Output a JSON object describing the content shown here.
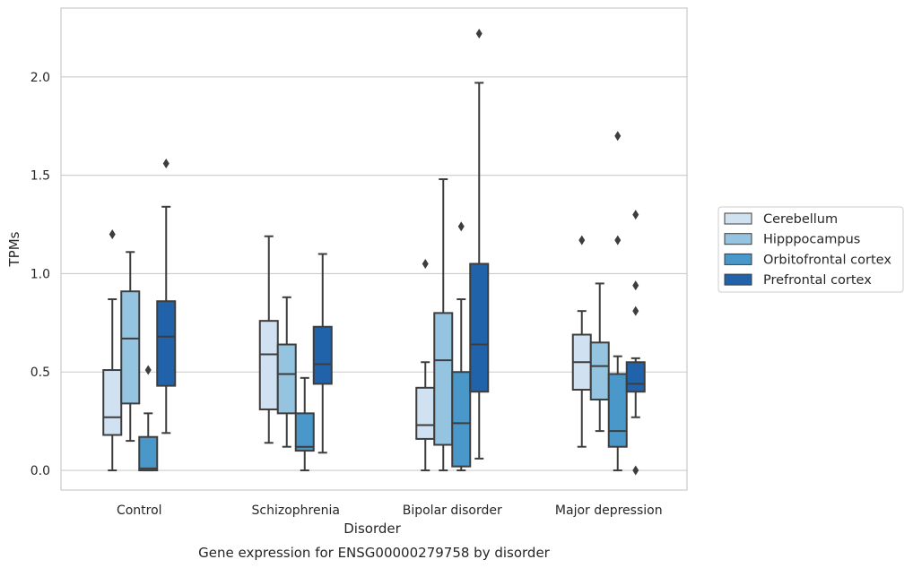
{
  "chart_data": {
    "type": "box",
    "title": "Gene expression for ENSG00000279758 by disorder",
    "xlabel": "Disorder",
    "ylabel": "TPMs",
    "ylim": [
      -0.1,
      2.35
    ],
    "yticks": [
      0.0,
      0.5,
      1.0,
      1.5,
      2.0
    ],
    "ytick_labels": [
      "0.0",
      "0.5",
      "1.0",
      "1.5",
      "2.0"
    ],
    "grid": "horizontal",
    "legend_position": "right",
    "categories": [
      "Control",
      "Schizophrenia",
      "Bipolar disorder",
      "Major depression"
    ],
    "series": [
      {
        "name": "Cerebellum",
        "color": "#d0e1f2",
        "boxes": [
          {
            "whisker_low": 0.0,
            "q1": 0.18,
            "median": 0.27,
            "q3": 0.51,
            "whisker_high": 0.87,
            "outliers": [
              1.2
            ]
          },
          {
            "whisker_low": 0.14,
            "q1": 0.31,
            "median": 0.59,
            "q3": 0.76,
            "whisker_high": 1.19,
            "outliers": []
          },
          {
            "whisker_low": 0.0,
            "q1": 0.16,
            "median": 0.23,
            "q3": 0.42,
            "whisker_high": 0.55,
            "outliers": [
              1.05
            ]
          },
          {
            "whisker_low": 0.12,
            "q1": 0.41,
            "median": 0.55,
            "q3": 0.69,
            "whisker_high": 0.81,
            "outliers": [
              1.17
            ]
          }
        ]
      },
      {
        "name": "Hipppocampus",
        "color": "#94c4df",
        "boxes": [
          {
            "whisker_low": 0.15,
            "q1": 0.34,
            "median": 0.67,
            "q3": 0.91,
            "whisker_high": 1.11,
            "outliers": []
          },
          {
            "whisker_low": 0.12,
            "q1": 0.29,
            "median": 0.49,
            "q3": 0.64,
            "whisker_high": 0.88,
            "outliers": []
          },
          {
            "whisker_low": 0.0,
            "q1": 0.13,
            "median": 0.56,
            "q3": 0.8,
            "whisker_high": 1.48,
            "outliers": []
          },
          {
            "whisker_low": 0.2,
            "q1": 0.36,
            "median": 0.53,
            "q3": 0.65,
            "whisker_high": 0.95,
            "outliers": []
          }
        ]
      },
      {
        "name": "Orbitofrontal cortex",
        "color": "#4a98c9",
        "boxes": [
          {
            "whisker_low": 0.0,
            "q1": 0.0,
            "median": 0.01,
            "q3": 0.17,
            "whisker_high": 0.29,
            "outliers": [
              0.51
            ]
          },
          {
            "whisker_low": 0.0,
            "q1": 0.1,
            "median": 0.12,
            "q3": 0.29,
            "whisker_high": 0.47,
            "outliers": []
          },
          {
            "whisker_low": 0.0,
            "q1": 0.02,
            "median": 0.24,
            "q3": 0.5,
            "whisker_high": 0.87,
            "outliers": [
              1.24
            ]
          },
          {
            "whisker_low": 0.0,
            "q1": 0.12,
            "median": 0.2,
            "q3": 0.49,
            "whisker_high": 0.58,
            "outliers": [
              1.17,
              1.7
            ]
          }
        ]
      },
      {
        "name": "Prefrontal cortex",
        "color": "#2163aa",
        "boxes": [
          {
            "whisker_low": 0.19,
            "q1": 0.43,
            "median": 0.68,
            "q3": 0.86,
            "whisker_high": 1.34,
            "outliers": [
              1.56
            ]
          },
          {
            "whisker_low": 0.09,
            "q1": 0.44,
            "median": 0.54,
            "q3": 0.73,
            "whisker_high": 1.1,
            "outliers": []
          },
          {
            "whisker_low": 0.06,
            "q1": 0.4,
            "median": 0.64,
            "q3": 1.05,
            "whisker_high": 1.97,
            "outliers": [
              2.22
            ]
          },
          {
            "whisker_low": 0.27,
            "q1": 0.4,
            "median": 0.44,
            "q3": 0.55,
            "whisker_high": 0.57,
            "outliers": [
              0.81,
              0.94,
              1.3,
              0.0
            ]
          }
        ]
      }
    ]
  }
}
